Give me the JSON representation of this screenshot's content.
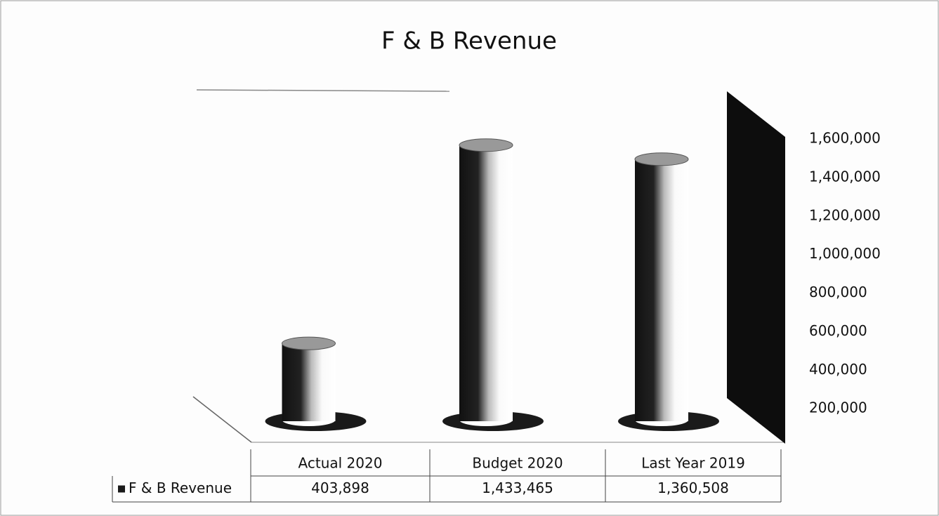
{
  "chart_data": {
    "type": "bar3d",
    "title": "F & B Revenue",
    "categories": [
      "Actual 2020",
      "Budget 2020",
      "Last Year 2019"
    ],
    "series": [
      {
        "name": "F & B Revenue",
        "color": "#1a1a1a",
        "values": [
          403898,
          1433465,
          1360508
        ],
        "value_labels": [
          "403,898",
          "1,433,465",
          "1,360,508"
        ]
      }
    ],
    "ylim": [
      0,
      1600000
    ],
    "yticks": [
      {
        "value": 200000,
        "label": "200,000"
      },
      {
        "value": 400000,
        "label": "400,000"
      },
      {
        "value": 600000,
        "label": "600,000"
      },
      {
        "value": 800000,
        "label": "800,000"
      },
      {
        "value": 1000000,
        "label": "1,000,000"
      },
      {
        "value": 1200000,
        "label": "1,200,000"
      },
      {
        "value": 1400000,
        "label": "1,400,000"
      },
      {
        "value": 1600000,
        "label": "1,600,000"
      }
    ],
    "data_table": true
  }
}
